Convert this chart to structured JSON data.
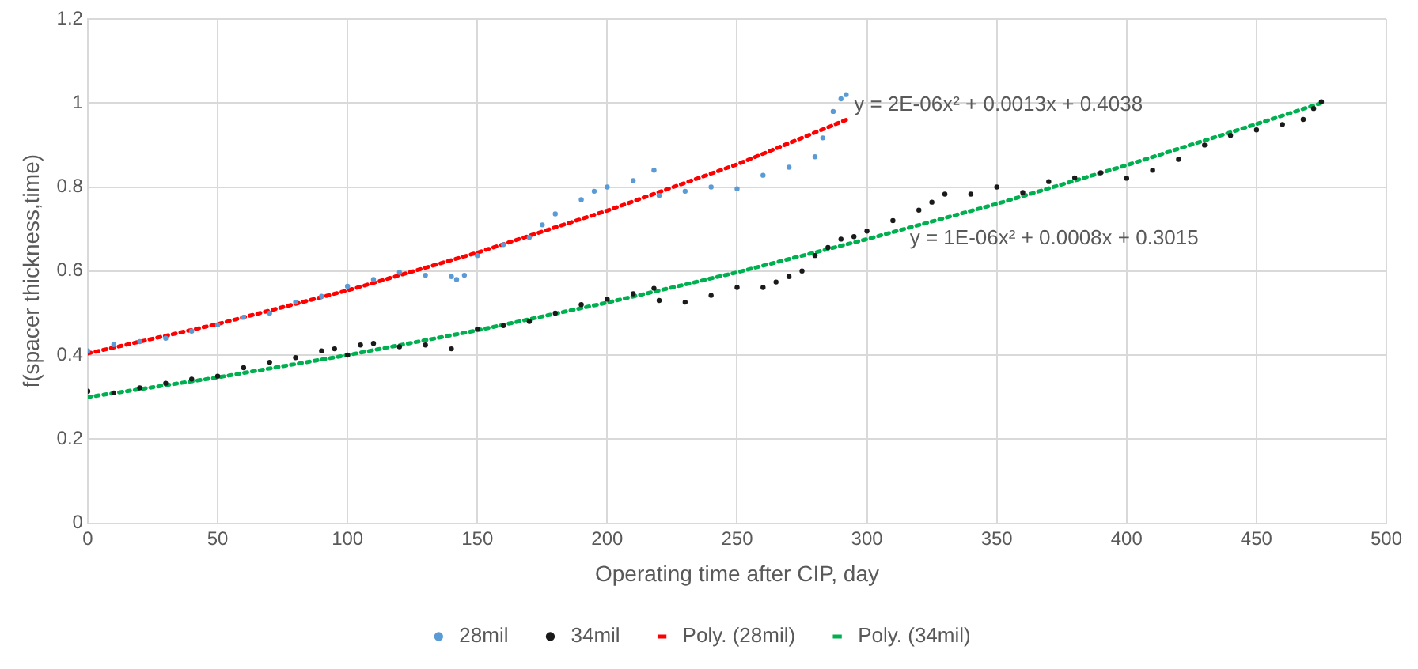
{
  "chart_data": {
    "type": "scatter",
    "xlabel": "Operating time after CIP, day",
    "ylabel": "f(spacer thickness,time)",
    "xlim": [
      0,
      500
    ],
    "xticks": [
      0,
      50,
      100,
      150,
      200,
      250,
      300,
      350,
      400,
      450,
      500
    ],
    "ylim": [
      0,
      1.2
    ],
    "yticks": [
      0,
      0.2,
      0.4,
      0.6,
      0.8,
      1,
      1.2
    ],
    "grid": true,
    "legend": "bottom",
    "series": [
      {
        "name": "28mil",
        "marker": "circle",
        "color": "#5b9bd5",
        "x": [
          0,
          10,
          20,
          30,
          40,
          50,
          60,
          70,
          80,
          90,
          100,
          110,
          120,
          130,
          140,
          142,
          145,
          150,
          160,
          170,
          175,
          180,
          190,
          195,
          200,
          210,
          218,
          220,
          230,
          240,
          250,
          260,
          270,
          280,
          283,
          287,
          290,
          292
        ],
        "values": [
          0.41,
          0.425,
          0.432,
          0.44,
          0.457,
          0.472,
          0.49,
          0.5,
          0.526,
          0.54,
          0.564,
          0.58,
          0.597,
          0.59,
          0.587,
          0.58,
          0.59,
          0.637,
          0.663,
          0.68,
          0.71,
          0.736,
          0.77,
          0.79,
          0.8,
          0.815,
          0.84,
          0.78,
          0.79,
          0.8,
          0.796,
          0.828,
          0.847,
          0.872,
          0.917,
          0.98,
          1.01,
          1.02
        ]
      },
      {
        "name": "34mil",
        "marker": "circle",
        "color": "#1a1a1a",
        "x": [
          0,
          10,
          20,
          30,
          40,
          50,
          60,
          70,
          80,
          90,
          95,
          100,
          105,
          110,
          120,
          130,
          140,
          150,
          160,
          170,
          180,
          190,
          200,
          210,
          218,
          220,
          230,
          240,
          250,
          260,
          265,
          270,
          275,
          280,
          285,
          290,
          295,
          300,
          310,
          320,
          325,
          330,
          340,
          350,
          360,
          370,
          380,
          390,
          400,
          410,
          420,
          430,
          440,
          450,
          460,
          468,
          472,
          475
        ],
        "values": [
          0.314,
          0.31,
          0.322,
          0.333,
          0.343,
          0.35,
          0.37,
          0.383,
          0.394,
          0.41,
          0.415,
          0.4,
          0.424,
          0.428,
          0.42,
          0.424,
          0.415,
          0.462,
          0.47,
          0.48,
          0.5,
          0.52,
          0.533,
          0.546,
          0.559,
          0.53,
          0.526,
          0.542,
          0.561,
          0.561,
          0.574,
          0.587,
          0.6,
          0.637,
          0.656,
          0.676,
          0.682,
          0.695,
          0.72,
          0.745,
          0.764,
          0.783,
          0.783,
          0.8,
          0.787,
          0.813,
          0.822,
          0.834,
          0.821,
          0.84,
          0.866,
          0.9,
          0.923,
          0.936,
          0.949,
          0.961,
          0.987,
          1.003
        ]
      },
      {
        "name": "Poly. (28mil)",
        "type": "line",
        "line_style": "dotted",
        "marker": "none",
        "color": "#ff0000",
        "x": [
          0,
          50,
          100,
          150,
          200,
          250,
          292
        ],
        "values": [
          0.404,
          0.474,
          0.554,
          0.644,
          0.744,
          0.854,
          0.96
        ]
      },
      {
        "name": "Poly. (34mil)",
        "type": "line",
        "line_style": "dotted",
        "marker": "none",
        "color": "#00b050",
        "x": [
          0,
          50,
          100,
          150,
          200,
          250,
          300,
          350,
          400,
          450,
          475
        ],
        "values": [
          0.3,
          0.347,
          0.4,
          0.459,
          0.525,
          0.597,
          0.676,
          0.76,
          0.852,
          0.95,
          1.0
        ]
      }
    ],
    "annotations": [
      "y = 2E-06x² + 0.0013x + 0.4038",
      "y = 1E-06x² + 0.0008x + 0.3015"
    ]
  }
}
